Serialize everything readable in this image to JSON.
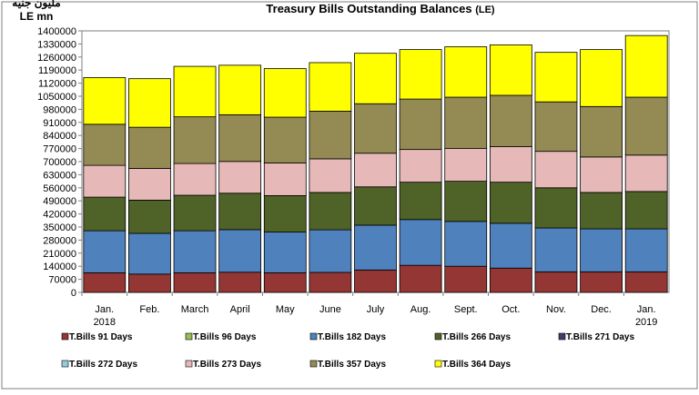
{
  "chart_data": {
    "type": "bar",
    "stacked": true,
    "title": "Treasury Bills Outstanding Balances",
    "title_suffix": "(LE)",
    "unit_label_ar": "مليون جنيه",
    "unit_label": "LE mn",
    "categories": [
      "Jan.",
      "Feb.",
      "March",
      "April",
      "May",
      "June",
      "July",
      "Aug.",
      "Sept.",
      "Oct.",
      "Nov.",
      "Dec.",
      "Jan."
    ],
    "category_years": [
      "2018",
      "",
      "",
      "",
      "",
      "",
      "",
      "",
      "",
      "",
      "",
      "",
      "2019"
    ],
    "ylim": [
      0,
      1400000
    ],
    "yticks": [
      0,
      70000,
      140000,
      210000,
      280000,
      350000,
      420000,
      490000,
      560000,
      630000,
      700000,
      770000,
      840000,
      910000,
      980000,
      1050000,
      1120000,
      1190000,
      1260000,
      1330000,
      1400000
    ],
    "ytick_labels": [
      "0",
      "70000",
      "140000",
      "210000",
      "280000",
      "350000",
      "420000",
      "490000",
      "560000",
      "630000",
      "700000",
      "770000",
      "840000",
      "910000",
      "980000",
      "1050000",
      "1120000",
      "1190000",
      "1260000",
      "1330000",
      "1400000"
    ],
    "legend_position": "bottom",
    "legend": [
      {
        "name": "T.Bills 91 Days",
        "color": "#943634"
      },
      {
        "name": "T.Bills 96 Days",
        "color": "#9bbb59"
      },
      {
        "name": "T.Bills 182 Days",
        "color": "#4f81bd"
      },
      {
        "name": "T.Bills 266 Days",
        "color": "#4f6228"
      },
      {
        "name": "T.Bills 271 Days",
        "color": "#3f3f6f"
      },
      {
        "name": "T.Bills 272 Days",
        "color": "#93cddd"
      },
      {
        "name": "T.Bills 273 Days",
        "color": "#e6b9b8"
      },
      {
        "name": "T.Bills 357 Days",
        "color": "#948a54"
      },
      {
        "name": "T.Bills 364 Days",
        "color": "#ffff00"
      }
    ],
    "series": [
      {
        "name": "T.Bills 91 Days",
        "color": "#943634",
        "values": [
          105000,
          98000,
          105000,
          108000,
          105000,
          107000,
          120000,
          145000,
          140000,
          130000,
          110000,
          110000,
          110000
        ]
      },
      {
        "name": "T.Bills 182 Days",
        "color": "#4f81bd",
        "values": [
          225000,
          218000,
          225000,
          228000,
          218000,
          228000,
          240000,
          245000,
          240000,
          240000,
          235000,
          230000,
          230000
        ]
      },
      {
        "name": "T.Bills 266 Days",
        "color": "#4f6228",
        "values": [
          180000,
          178000,
          190000,
          195000,
          195000,
          200000,
          205000,
          200000,
          215000,
          220000,
          215000,
          195000,
          200000
        ]
      },
      {
        "name": "T.Bills 273 Days",
        "color": "#e6b9b8",
        "values": [
          170000,
          170000,
          170000,
          170000,
          175000,
          180000,
          180000,
          175000,
          175000,
          190000,
          195000,
          190000,
          195000
        ]
      },
      {
        "name": "T.Bills 357 Days",
        "color": "#948a54",
        "values": [
          220000,
          220000,
          250000,
          250000,
          245000,
          255000,
          265000,
          270000,
          275000,
          275000,
          265000,
          270000,
          310000
        ]
      },
      {
        "name": "T.Bills 364 Days",
        "color": "#ffff00",
        "values": [
          250000,
          260000,
          270000,
          265000,
          260000,
          260000,
          270000,
          265000,
          270000,
          270000,
          265000,
          305000,
          330000
        ]
      }
    ]
  }
}
